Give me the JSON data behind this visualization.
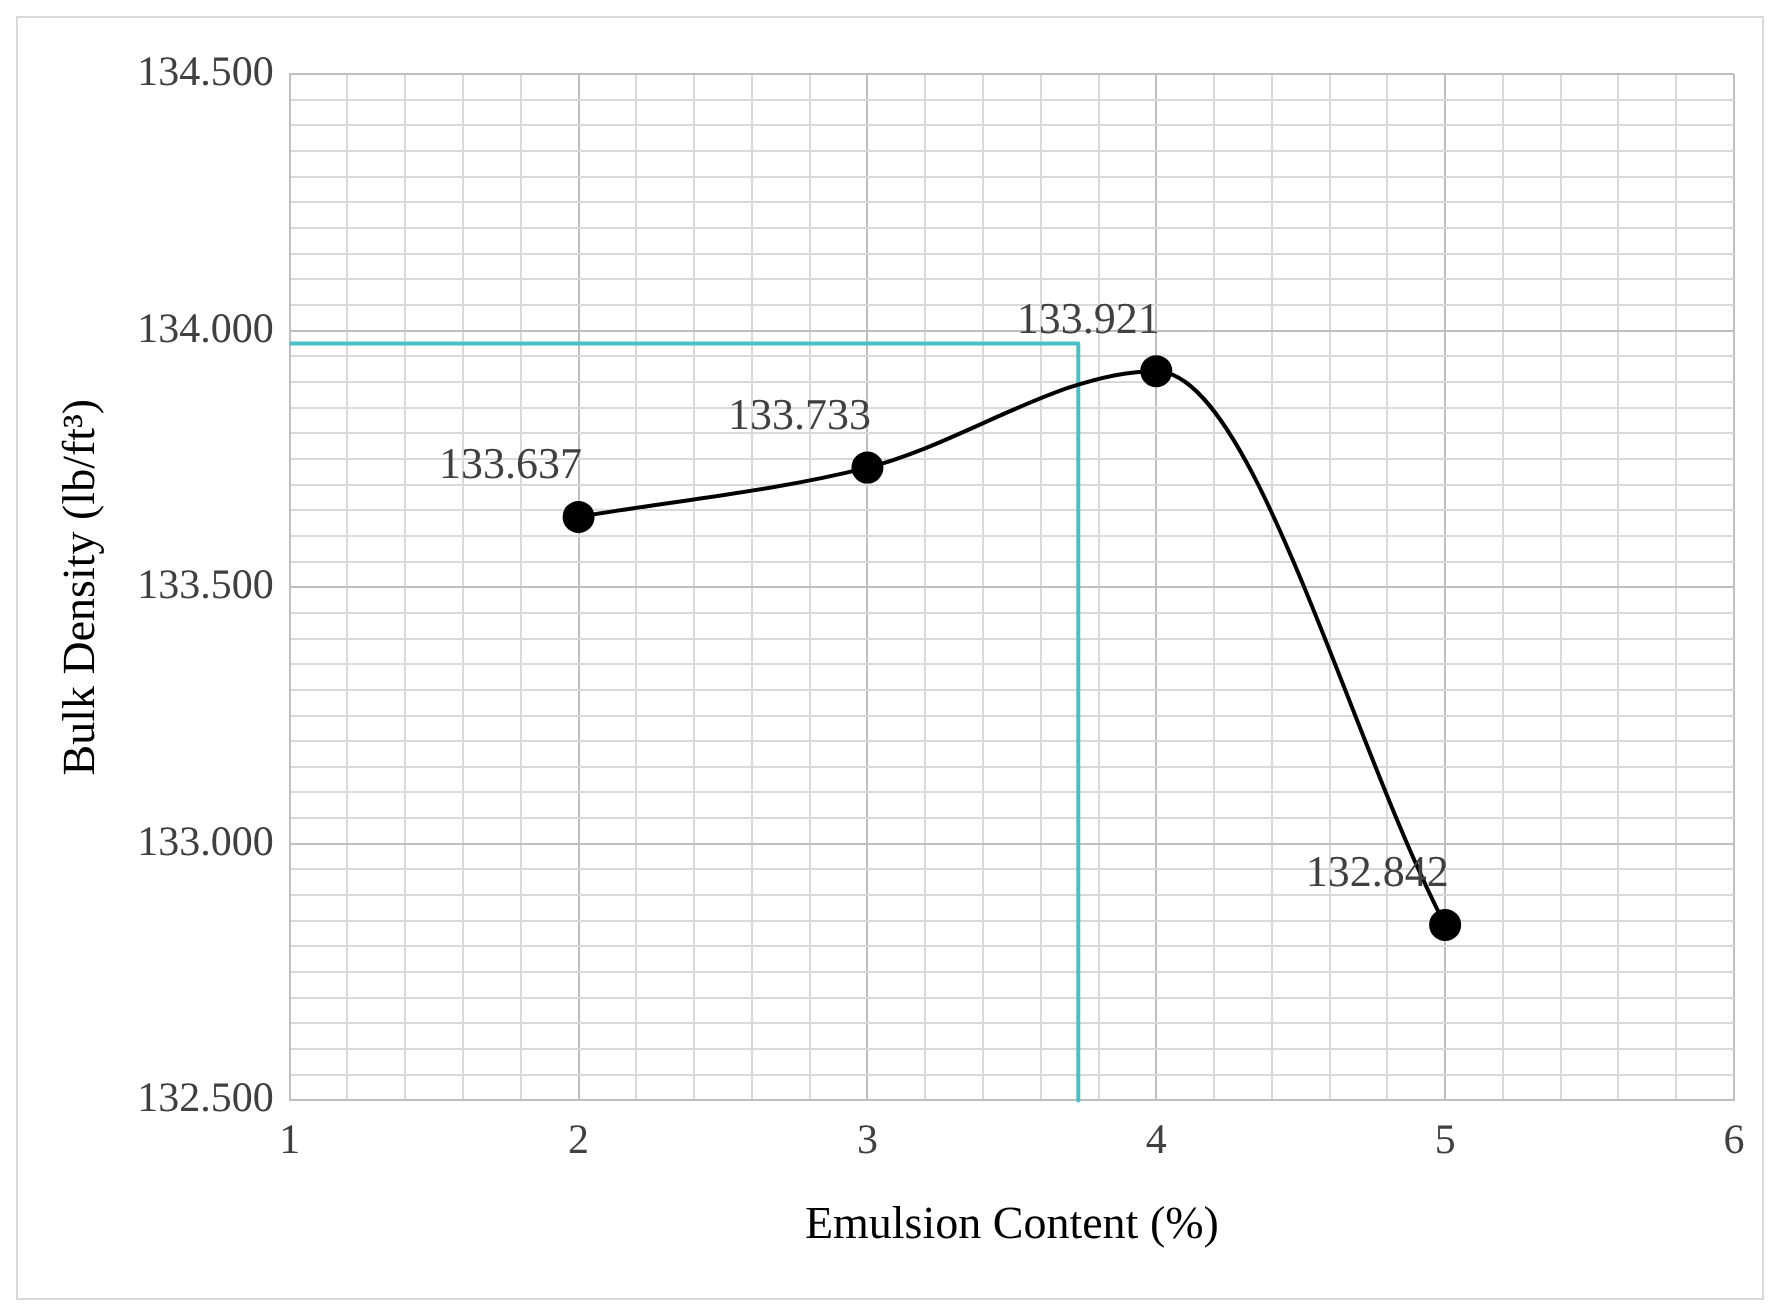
{
  "chart_data": {
    "type": "line",
    "xlabel": "Emulsion Content (%)",
    "ylabel": "Bulk Density (lb/ft³)",
    "xlim": [
      1,
      6
    ],
    "ylim": [
      132.5,
      134.5
    ],
    "xticks": [
      1,
      {
        "value": 1.2,
        "label": null
      },
      {
        "value": 1.4,
        "label": null
      },
      {
        "value": 1.6,
        "label": null
      },
      {
        "value": 1.8,
        "label": null
      },
      2,
      {
        "value": 2.2,
        "label": null
      },
      {
        "value": 2.4,
        "label": null
      },
      {
        "value": 2.6,
        "label": null
      },
      {
        "value": 2.8,
        "label": null
      },
      3,
      {
        "value": 3.2,
        "label": null
      },
      {
        "value": 3.4,
        "label": null
      },
      {
        "value": 3.6,
        "label": null
      },
      {
        "value": 3.8,
        "label": null
      },
      4,
      {
        "value": 4.2,
        "label": null
      },
      {
        "value": 4.4,
        "label": null
      },
      {
        "value": 4.6,
        "label": null
      },
      {
        "value": 4.8,
        "label": null
      },
      5,
      {
        "value": 5.2,
        "label": null
      },
      {
        "value": 5.4,
        "label": null
      },
      {
        "value": 5.6,
        "label": null
      },
      {
        "value": 5.8,
        "label": null
      },
      6
    ],
    "yticks": [
      {
        "value": 132.5,
        "label": "132.500"
      },
      {
        "value": 132.55,
        "label": null
      },
      {
        "value": 132.6,
        "label": null
      },
      {
        "value": 132.65,
        "label": null
      },
      {
        "value": 132.7,
        "label": null
      },
      {
        "value": 132.75,
        "label": null
      },
      {
        "value": 132.8,
        "label": null
      },
      {
        "value": 132.85,
        "label": null
      },
      {
        "value": 132.9,
        "label": null
      },
      {
        "value": 132.95,
        "label": null
      },
      {
        "value": 133,
        "label": "133.000"
      },
      {
        "value": 133.05,
        "label": null
      },
      {
        "value": 133.1,
        "label": null
      },
      {
        "value": 133.15,
        "label": null
      },
      {
        "value": 133.2,
        "label": null
      },
      {
        "value": 133.25,
        "label": null
      },
      {
        "value": 133.3,
        "label": null
      },
      {
        "value": 133.35,
        "label": null
      },
      {
        "value": 133.4,
        "label": null
      },
      {
        "value": 133.45,
        "label": null
      },
      {
        "value": 133.5,
        "label": "133.500"
      },
      {
        "value": 133.55,
        "label": null
      },
      {
        "value": 133.6,
        "label": null
      },
      {
        "value": 133.65,
        "label": null
      },
      {
        "value": 133.7,
        "label": null
      },
      {
        "value": 133.75,
        "label": null
      },
      {
        "value": 133.8,
        "label": null
      },
      {
        "value": 133.85,
        "label": null
      },
      {
        "value": 133.9,
        "label": null
      },
      {
        "value": 133.95,
        "label": null
      },
      {
        "value": 134,
        "label": "134.000"
      },
      {
        "value": 134.05,
        "label": null
      },
      {
        "value": 134.1,
        "label": null
      },
      {
        "value": 134.15,
        "label": null
      },
      {
        "value": 134.2,
        "label": null
      },
      {
        "value": 134.25,
        "label": null
      },
      {
        "value": 134.3,
        "label": null
      },
      {
        "value": 134.35,
        "label": null
      },
      {
        "value": 134.4,
        "label": null
      },
      {
        "value": 134.45,
        "label": null
      },
      {
        "value": 134.5,
        "label": "134.500"
      }
    ],
    "grid": true,
    "legend": false,
    "marker": "circle",
    "series": [
      {
        "color": "#000000",
        "x": [
          2,
          3,
          4,
          5
        ],
        "values": [
          133.637,
          133.733,
          133.921,
          132.842
        ],
        "value_labels": [
          "133.637",
          "133.733",
          "133.921",
          "132.842"
        ]
      },
      {
        "color": "#4bbfc8",
        "x": [
          1,
          3.73,
          3.73
        ],
        "values": [
          133.975,
          133.975,
          132.5
        ],
        "marker": "none"
      }
    ]
  }
}
